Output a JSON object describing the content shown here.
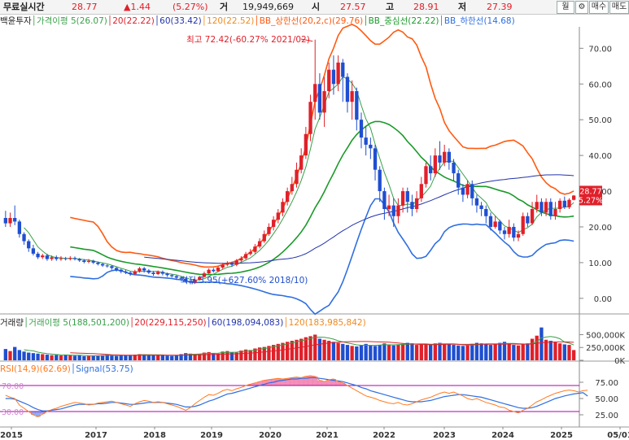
{
  "quote": {
    "label": "무료실시간",
    "price": "28.77",
    "change": "▲1.44",
    "change_pct": "(5.27%)",
    "volume_label": "거",
    "volume": "19,949,669",
    "open_label": "시",
    "open": "27.57",
    "high_label": "고",
    "high": "28.91",
    "low_label": "저",
    "low": "27.39",
    "period_button": "월",
    "settings_icon": "gear-icon",
    "buy_button": "매수",
    "sell_button": "매도",
    "colors": {
      "up": "#e0202a",
      "down": "#1f4fd0"
    }
  },
  "price_legend": [
    {
      "text": "백윤투자",
      "color": "#222222"
    },
    {
      "text": "가격이평 5(26.07)",
      "color": "#3aa04a"
    },
    {
      "text": "20(22.22)",
      "color": "#e0202a"
    },
    {
      "text": "60(33.42)",
      "color": "#2233aa"
    },
    {
      "text": "120(22.52)",
      "color": "#f08a20"
    },
    {
      "text": "BB_상한선(20,2,c)(29.76)",
      "color": "#ff5a10"
    },
    {
      "text": "BB_중심선(22.22)",
      "color": "#1a9a2a"
    },
    {
      "text": "BB_하한선(14.68)",
      "color": "#2f6fe0"
    }
  ],
  "volume_legend": [
    {
      "text": "거래량",
      "color": "#222222"
    },
    {
      "text": "거래이평 5(188,501,200)",
      "color": "#3aa04a"
    },
    {
      "text": "20(229,115,250)",
      "color": "#e0202a"
    },
    {
      "text": "60(198,094,083)",
      "color": "#2233aa"
    },
    {
      "text": "120(183,985,842)",
      "color": "#f08a20"
    }
  ],
  "rsi_legend": [
    {
      "text": "RSI(14,9)(62.69)",
      "color": "#ff7a20"
    },
    {
      "text": "Signal(53.75)",
      "color": "#2f6fe0"
    }
  ],
  "annotations": {
    "max": "최고 72.42(-60.27% 2021/02)",
    "min": "최저 3.95(+627.60% 2018/10)",
    "current_price": "28.77",
    "current_pct": "(5.27%)"
  },
  "chart_data": {
    "type": "candlestick",
    "period": "monthly",
    "x_tick_labels": [
      "2015",
      "2017",
      "2018",
      "2019",
      "2020",
      "2021",
      "2022",
      "2023",
      "2024",
      "2025",
      "05/01"
    ],
    "price_axis": {
      "ticks": [
        0,
        10,
        20,
        30,
        40,
        50,
        60,
        70
      ],
      "tick_labels": [
        "0.00",
        "10.00",
        "20.00",
        "30.00",
        "40.00",
        "50.00",
        "60.00",
        "70.00"
      ],
      "range": [
        -3,
        76
      ]
    },
    "volume_axis": {
      "ticks": [
        0,
        250000,
        500000
      ],
      "tick_labels": [
        "0K",
        "250,000K",
        "500,000K"
      ]
    },
    "rsi_axis": {
      "ticks": [
        25,
        50,
        75
      ],
      "tick_labels": [
        "25.00",
        "50.00",
        "75.00"
      ],
      "levels": [
        30,
        70
      ],
      "level_labels": [
        "30.00",
        "70.00"
      ]
    },
    "candles": [
      [
        22.5,
        21.0,
        24.5,
        20.0
      ],
      [
        21.0,
        22.5,
        24.0,
        20.0
      ],
      [
        22.5,
        21.5,
        26.0,
        20.5
      ],
      [
        21.5,
        18.0,
        22.0,
        17.0
      ],
      [
        18.0,
        16.0,
        18.5,
        15.0
      ],
      [
        16.0,
        14.0,
        16.5,
        13.0
      ],
      [
        14.0,
        12.5,
        15.0,
        12.0
      ],
      [
        12.5,
        11.5,
        13.0,
        11.0
      ],
      [
        11.5,
        12.0,
        12.5,
        11.0
      ],
      [
        12.0,
        11.0,
        12.5,
        10.5
      ],
      [
        11.0,
        11.5,
        12.0,
        10.5
      ],
      [
        11.5,
        11.0,
        12.0,
        10.5
      ],
      [
        11.0,
        11.2,
        11.8,
        10.5
      ],
      [
        11.2,
        11.0,
        11.6,
        10.6
      ],
      [
        11.0,
        11.3,
        11.8,
        10.6
      ],
      [
        11.3,
        11.0,
        11.7,
        10.6
      ],
      [
        11.0,
        10.6,
        11.3,
        10.2
      ],
      [
        10.6,
        10.2,
        11.0,
        9.8
      ],
      [
        10.2,
        10.5,
        11.0,
        9.8
      ],
      [
        10.5,
        10.0,
        10.8,
        9.6
      ],
      [
        10.0,
        9.6,
        10.3,
        9.2
      ],
      [
        9.6,
        9.2,
        9.9,
        8.8
      ],
      [
        9.2,
        9.0,
        9.5,
        8.6
      ],
      [
        9.0,
        8.5,
        9.3,
        8.0
      ],
      [
        8.5,
        8.0,
        8.8,
        7.5
      ],
      [
        8.0,
        7.5,
        8.3,
        7.0
      ],
      [
        7.5,
        7.2,
        7.9,
        6.8
      ],
      [
        7.2,
        6.8,
        7.5,
        6.3
      ],
      [
        6.8,
        7.6,
        8.0,
        6.5
      ],
      [
        7.6,
        8.4,
        8.8,
        7.2
      ],
      [
        8.4,
        7.8,
        8.8,
        7.2
      ],
      [
        7.8,
        7.2,
        8.2,
        6.8
      ],
      [
        7.2,
        6.8,
        7.6,
        6.3
      ],
      [
        6.8,
        7.4,
        7.8,
        6.5
      ],
      [
        7.4,
        6.9,
        7.8,
        6.4
      ],
      [
        6.9,
        6.5,
        7.2,
        6.0
      ],
      [
        6.5,
        6.2,
        6.8,
        5.8
      ],
      [
        6.2,
        5.8,
        6.5,
        5.2
      ],
      [
        5.8,
        5.5,
        6.1,
        4.9
      ],
      [
        5.5,
        4.8,
        5.7,
        4.3
      ],
      [
        4.8,
        4.4,
        5.0,
        3.95
      ],
      [
        4.4,
        5.2,
        5.5,
        4.2
      ],
      [
        5.2,
        6.0,
        6.3,
        5.0
      ],
      [
        6.0,
        7.0,
        7.5,
        5.8
      ],
      [
        7.0,
        8.0,
        8.4,
        6.8
      ],
      [
        8.0,
        7.6,
        8.5,
        7.2
      ],
      [
        7.6,
        8.6,
        9.0,
        7.4
      ],
      [
        8.6,
        9.4,
        9.8,
        8.2
      ],
      [
        9.4,
        9.9,
        10.4,
        9.0
      ],
      [
        9.9,
        9.4,
        10.3,
        8.8
      ],
      [
        9.4,
        10.6,
        11.0,
        9.0
      ],
      [
        10.6,
        11.2,
        11.8,
        10.2
      ],
      [
        11.2,
        12.4,
        13.0,
        10.8
      ],
      [
        12.4,
        13.0,
        13.8,
        12.0
      ],
      [
        13.0,
        14.5,
        15.2,
        12.5
      ],
      [
        14.5,
        16.0,
        16.8,
        14.0
      ],
      [
        16.0,
        18.0,
        19.0,
        15.5
      ],
      [
        18.0,
        20.0,
        21.0,
        17.5
      ],
      [
        20.0,
        22.0,
        23.0,
        19.0
      ],
      [
        22.0,
        24.0,
        25.0,
        21.0
      ],
      [
        24.0,
        27.0,
        28.0,
        23.0
      ],
      [
        27.0,
        30.0,
        31.0,
        26.0
      ],
      [
        30.0,
        32.0,
        34.0,
        29.0
      ],
      [
        32.0,
        36.0,
        38.0,
        31.0
      ],
      [
        36.0,
        40.0,
        42.0,
        35.0
      ],
      [
        40.0,
        46.0,
        48.0,
        39.0
      ],
      [
        46.0,
        55.0,
        57.0,
        44.0
      ],
      [
        55.0,
        60.0,
        72.42,
        50.0
      ],
      [
        60.0,
        52.0,
        63.0,
        50.0
      ],
      [
        52.0,
        58.0,
        62.0,
        48.0
      ],
      [
        58.0,
        64.0,
        66.0,
        56.0
      ],
      [
        64.0,
        60.0,
        68.0,
        57.0
      ],
      [
        60.0,
        66.0,
        68.0,
        58.0
      ],
      [
        66.0,
        62.0,
        67.0,
        55.0
      ],
      [
        62.0,
        55.0,
        63.0,
        52.0
      ],
      [
        55.0,
        58.0,
        61.0,
        50.0
      ],
      [
        58.0,
        50.0,
        59.0,
        47.0
      ],
      [
        50.0,
        45.0,
        52.0,
        42.0
      ],
      [
        45.0,
        43.0,
        48.0,
        40.0
      ],
      [
        43.0,
        42.0,
        45.0,
        39.0
      ],
      [
        42.0,
        36.0,
        43.0,
        33.0
      ],
      [
        36.0,
        30.0,
        37.0,
        27.0
      ],
      [
        30.0,
        25.0,
        31.0,
        22.0
      ],
      [
        25.0,
        26.0,
        29.0,
        23.0
      ],
      [
        26.0,
        23.0,
        28.0,
        20.0
      ],
      [
        23.0,
        26.0,
        28.0,
        21.0
      ],
      [
        26.0,
        30.0,
        31.0,
        24.0
      ],
      [
        30.0,
        27.0,
        31.0,
        24.0
      ],
      [
        27.0,
        25.0,
        29.0,
        23.0
      ],
      [
        25.0,
        28.0,
        30.0,
        24.0
      ],
      [
        28.0,
        32.0,
        34.0,
        27.0
      ],
      [
        32.0,
        37.0,
        38.0,
        31.0
      ],
      [
        37.0,
        35.0,
        40.0,
        33.0
      ],
      [
        35.0,
        40.0,
        42.0,
        34.0
      ],
      [
        40.0,
        38.0,
        44.0,
        36.0
      ],
      [
        38.0,
        41.0,
        43.0,
        37.0
      ],
      [
        41.0,
        38.0,
        42.0,
        36.0
      ],
      [
        38.0,
        35.0,
        39.0,
        33.0
      ],
      [
        35.0,
        31.0,
        36.0,
        29.0
      ],
      [
        31.0,
        29.0,
        32.0,
        27.0
      ],
      [
        29.0,
        32.0,
        33.0,
        28.0
      ],
      [
        32.0,
        28.0,
        33.0,
        26.0
      ],
      [
        28.0,
        26.0,
        29.0,
        24.0
      ],
      [
        26.0,
        25.0,
        27.0,
        23.0
      ],
      [
        25.0,
        23.0,
        26.0,
        21.0
      ],
      [
        23.0,
        20.0,
        24.0,
        19.0
      ],
      [
        20.0,
        21.5,
        23.0,
        19.5
      ],
      [
        21.5,
        19.0,
        22.0,
        18.0
      ],
      [
        19.0,
        18.0,
        20.0,
        16.5
      ],
      [
        18.0,
        20.0,
        22.0,
        17.0
      ],
      [
        20.0,
        17.0,
        21.0,
        16.0
      ],
      [
        17.0,
        18.0,
        19.0,
        16.0
      ],
      [
        18.0,
        23.0,
        24.0,
        17.5
      ],
      [
        23.0,
        21.0,
        24.0,
        20.0
      ],
      [
        21.0,
        25.0,
        27.0,
        20.5
      ],
      [
        25.0,
        27.0,
        29.0,
        24.0
      ],
      [
        27.0,
        24.0,
        28.0,
        23.0
      ],
      [
        24.0,
        27.0,
        28.0,
        23.0
      ],
      [
        27.0,
        23.0,
        28.0,
        22.0
      ],
      [
        23.0,
        25.0,
        27.0,
        22.0
      ],
      [
        25.0,
        27.33,
        28.0,
        24.0
      ],
      [
        27.33,
        25.5,
        28.5,
        25.0
      ],
      [
        25.5,
        27.57,
        28.0,
        25.0
      ],
      [
        27.57,
        28.77,
        28.91,
        27.39
      ]
    ],
    "volume_values": [
      220,
      180,
      260,
      200,
      170,
      150,
      140,
      130,
      120,
      110,
      100,
      105,
      95,
      110,
      100,
      90,
      95,
      80,
      85,
      90,
      95,
      100,
      110,
      90,
      85,
      95,
      100,
      105,
      110,
      120,
      115,
      100,
      95,
      110,
      100,
      90,
      85,
      95,
      120,
      140,
      130,
      110,
      120,
      150,
      160,
      140,
      130,
      170,
      180,
      160,
      150,
      190,
      210,
      200,
      230,
      250,
      260,
      280,
      300,
      320,
      340,
      360,
      380,
      400,
      420,
      450,
      470,
      500,
      420,
      400,
      380,
      360,
      340,
      320,
      300,
      280,
      270,
      300,
      320,
      290,
      280,
      300,
      330,
      310,
      290,
      300,
      320,
      340,
      330,
      300,
      310,
      320,
      300,
      330,
      340,
      320,
      310,
      300,
      290,
      280,
      300,
      320,
      340,
      330,
      310,
      300,
      320,
      340,
      360,
      330,
      300,
      290,
      310,
      330,
      420,
      480,
      640,
      400,
      380,
      350,
      330,
      310,
      300,
      200
    ],
    "rsi_values": [
      55,
      52,
      50,
      40,
      35,
      30,
      25,
      22,
      26,
      30,
      33,
      35,
      38,
      40,
      42,
      44,
      43,
      42,
      40,
      41,
      43,
      44,
      45,
      46,
      44,
      42,
      40,
      38,
      42,
      45,
      47,
      46,
      44,
      45,
      44,
      42,
      40,
      38,
      35,
      32,
      36,
      42,
      47,
      52,
      56,
      55,
      58,
      62,
      64,
      62,
      65,
      67,
      70,
      72,
      74,
      76,
      78,
      79,
      80,
      81,
      80,
      81,
      82,
      83,
      82,
      84,
      85,
      84,
      78,
      76,
      79,
      80,
      76,
      74,
      70,
      66,
      62,
      58,
      54,
      52,
      50,
      47,
      45,
      43,
      42,
      44,
      41,
      40,
      42,
      45,
      48,
      50,
      52,
      55,
      58,
      60,
      58,
      60,
      57,
      54,
      50,
      48,
      50,
      47,
      44,
      42,
      40,
      37,
      36,
      32,
      30,
      28,
      32,
      35,
      40,
      45,
      48,
      52,
      55,
      58,
      60,
      62,
      63,
      62,
      60,
      62,
      62.69
    ],
    "signal_values": [
      50,
      50,
      49,
      46,
      43,
      40,
      36,
      33,
      31,
      31,
      32,
      33,
      34,
      36,
      38,
      40,
      41,
      41,
      41,
      41,
      42,
      42,
      43,
      44,
      44,
      43,
      42,
      41,
      41,
      42,
      43,
      44,
      44,
      44,
      44,
      43,
      42,
      41,
      39,
      37,
      37,
      38,
      40,
      43,
      46,
      48,
      51,
      54,
      57,
      58,
      60,
      62,
      64,
      66,
      68,
      70,
      72,
      74,
      75,
      77,
      78,
      79,
      80,
      80,
      81,
      81,
      82,
      82,
      81,
      80,
      79,
      78,
      77,
      76,
      74,
      72,
      70,
      67,
      65,
      62,
      60,
      58,
      56,
      54,
      52,
      50,
      48,
      46,
      45,
      45,
      45,
      46,
      47,
      49,
      51,
      53,
      54,
      55,
      56,
      56,
      55,
      54,
      53,
      52,
      50,
      48,
      46,
      44,
      42,
      40,
      38,
      36,
      35,
      35,
      36,
      38,
      41,
      44,
      47,
      50,
      52,
      54,
      55.5,
      57,
      58,
      59,
      53.75
    ]
  }
}
